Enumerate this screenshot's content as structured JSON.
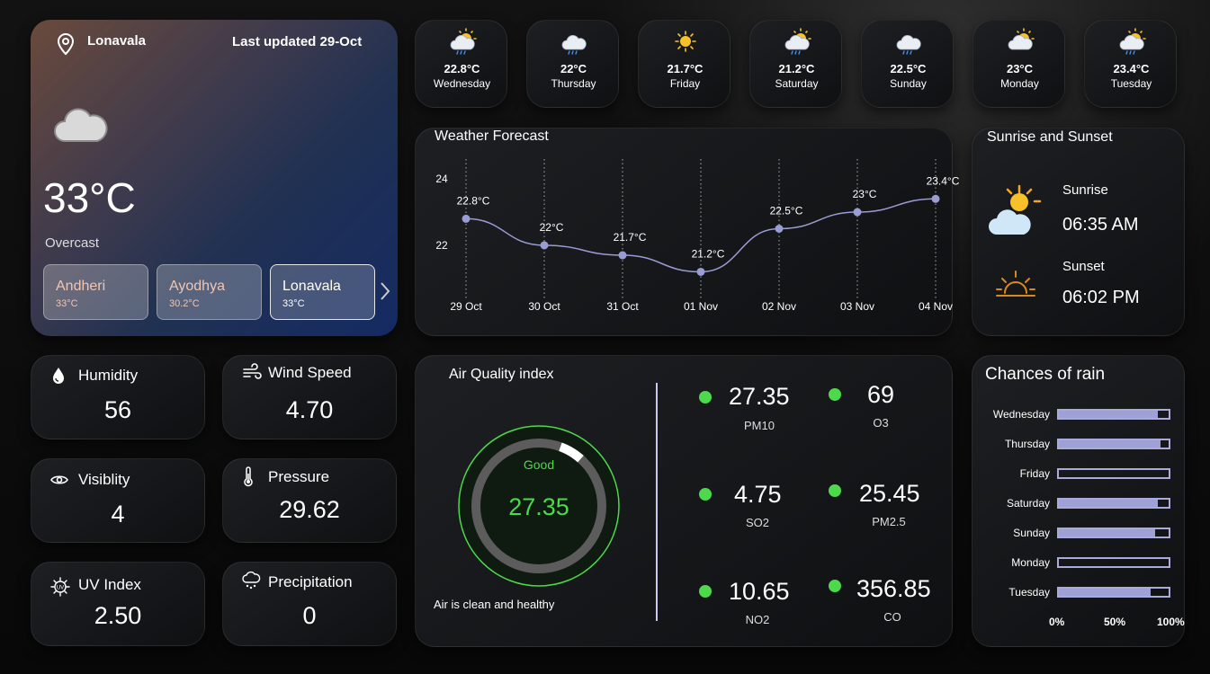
{
  "location": {
    "name": "Lonavala",
    "last_updated": "Last updated 29-Oct",
    "temperature": "33°C",
    "condition": "Overcast"
  },
  "cities": [
    {
      "name": "Andheri",
      "temp": "33°C"
    },
    {
      "name": "Ayodhya",
      "temp": "30.2°C"
    },
    {
      "name": "Lonavala",
      "temp": "33°C"
    }
  ],
  "daily": [
    {
      "temp": "22.8°C",
      "day": "Wednesday",
      "icon": "sun-cloud-rain-icon"
    },
    {
      "temp": "22°C",
      "day": "Thursday",
      "icon": "cloud-rain-icon"
    },
    {
      "temp": "21.7°C",
      "day": "Friday",
      "icon": "sun-icon"
    },
    {
      "temp": "21.2°C",
      "day": "Saturday",
      "icon": "sun-cloud-rain-icon"
    },
    {
      "temp": "22.5°C",
      "day": "Sunday",
      "icon": "cloud-rain-icon"
    },
    {
      "temp": "23°C",
      "day": "Monday",
      "icon": "sun-cloud-icon"
    },
    {
      "temp": "23.4°C",
      "day": "Tuesday",
      "icon": "sun-cloud-rain-icon"
    }
  ],
  "forecast": {
    "title": "Weather Forecast",
    "chart_data": {
      "type": "line",
      "x": [
        "29 Oct",
        "30 Oct",
        "31 Oct",
        "01 Nov",
        "02 Nov",
        "03 Nov",
        "04 Nov"
      ],
      "values": [
        22.8,
        22.0,
        21.7,
        21.2,
        22.5,
        23.0,
        23.4
      ],
      "point_labels": [
        "22.8°C",
        "22°C",
        "21.7°C",
        "21.2°C",
        "22.5°C",
        "23°C",
        "23.4°C"
      ],
      "yticks": [
        "24",
        "22"
      ],
      "ytick_values": [
        24,
        22
      ],
      "ylim": [
        20.4,
        24.6
      ],
      "line_color": "#9a9cd4",
      "grid": "vertical-dotted"
    }
  },
  "sun": {
    "title": "Sunrise and Sunset",
    "sunrise_label": "Sunrise",
    "sunrise_time": "06:35 AM",
    "sunset_label": "Sunset",
    "sunset_time": "06:02 PM"
  },
  "metrics": {
    "humidity": {
      "label": "Humidity",
      "value": "56"
    },
    "wind": {
      "label": "Wind Speed",
      "value": "4.70"
    },
    "visibility": {
      "label": "Visiblity",
      "value": "4"
    },
    "pressure": {
      "label": "Pressure",
      "value": "29.62"
    },
    "uv": {
      "label": "UV Index",
      "value": "2.50"
    },
    "precipitation": {
      "label": "Precipitation",
      "value": "0"
    }
  },
  "aqi": {
    "title": "Air Quality index",
    "status": "Good",
    "value": "27.35",
    "gauge_fraction": 0.06,
    "message": "Air is clean and healthy",
    "good_color": "#4cd94c",
    "items": [
      {
        "value": "27.35",
        "label": "PM10"
      },
      {
        "value": "69",
        "label": "O3"
      },
      {
        "value": "4.75",
        "label": "SO2"
      },
      {
        "value": "25.45",
        "label": "PM2.5"
      },
      {
        "value": "10.65",
        "label": "NO2"
      },
      {
        "value": "356.85",
        "label": "CO"
      }
    ]
  },
  "rain": {
    "title": "Chances of rain",
    "chart_data": {
      "type": "bar",
      "orientation": "horizontal",
      "categories": [
        "Wednesday",
        "Thursday",
        "Friday",
        "Saturday",
        "Sunday",
        "Monday",
        "Tuesday"
      ],
      "values": [
        90,
        93,
        0,
        90,
        88,
        0,
        84
      ],
      "xticks": [
        "0%",
        "50%",
        "100%"
      ],
      "xlim": [
        0,
        100
      ],
      "bar_color": "#9ea0d6"
    }
  }
}
